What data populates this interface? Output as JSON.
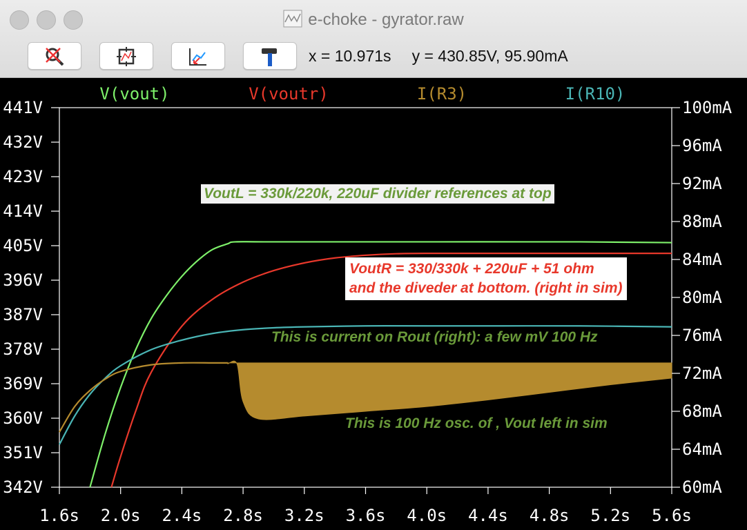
{
  "window": {
    "title": "e-choke - gyrator.raw",
    "cursor_x": "x = 10.971s",
    "cursor_y": "y = 430.85V, 95.90mA"
  },
  "toolbar": {
    "buttons": [
      {
        "icon": "zoom-cancel-icon"
      },
      {
        "icon": "autorange-icon"
      },
      {
        "icon": "pan-icon"
      },
      {
        "icon": "hammer-icon"
      }
    ]
  },
  "chart_data": {
    "type": "line",
    "title": "",
    "xlabel": "",
    "ylabel": "",
    "xlim": [
      1.6,
      5.6
    ],
    "ylim_left": [
      342,
      441
    ],
    "ylim_right": [
      60,
      100
    ],
    "x_ticks": [
      "1.6s",
      "2.0s",
      "2.4s",
      "2.8s",
      "3.2s",
      "3.6s",
      "4.0s",
      "4.4s",
      "4.8s",
      "5.2s",
      "5.6s"
    ],
    "y_left_ticks": [
      "441V",
      "432V",
      "423V",
      "414V",
      "405V",
      "396V",
      "387V",
      "378V",
      "369V",
      "360V",
      "351V",
      "342V"
    ],
    "y_right_ticks": [
      "100mA",
      "96mA",
      "92mA",
      "88mA",
      "84mA",
      "80mA",
      "76mA",
      "72mA",
      "68mA",
      "64mA",
      "60mA"
    ],
    "legend": [
      {
        "name": "V(vout)",
        "color": "#7ef06a"
      },
      {
        "name": "V(voutr)",
        "color": "#e8382b"
      },
      {
        "name": "I(R3)",
        "color": "#b58b2e"
      },
      {
        "name": "I(R10)",
        "color": "#4ab5b5"
      }
    ],
    "series": [
      {
        "name": "V(vout)",
        "axis": "left",
        "color": "#7ef06a",
        "x": [
          1.8,
          1.9,
          2.0,
          2.1,
          2.2,
          2.3,
          2.4,
          2.5,
          2.6,
          2.7,
          2.75,
          3.0,
          4.0,
          5.0,
          5.6
        ],
        "y": [
          342,
          356,
          368,
          378,
          386,
          392,
          397,
          401,
          404,
          405.5,
          406,
          406,
          406,
          406,
          405.8
        ]
      },
      {
        "name": "V(voutr)",
        "axis": "left",
        "color": "#e8382b",
        "x": [
          1.94,
          2.0,
          2.1,
          2.2,
          2.4,
          2.6,
          2.8,
          3.0,
          3.2,
          3.4,
          3.6,
          3.8,
          4.0,
          4.5,
          5.0,
          5.6
        ],
        "y": [
          342,
          350,
          362,
          372,
          384,
          391,
          395.5,
          398.5,
          400.5,
          401.8,
          402.5,
          402.9,
          403,
          403,
          403,
          403
        ]
      },
      {
        "name": "I(R10)",
        "axis": "right",
        "color": "#4ab5b5",
        "x": [
          1.6,
          1.7,
          1.8,
          1.9,
          2.0,
          2.2,
          2.4,
          2.6,
          2.8,
          3.0,
          3.2,
          3.6,
          4.0,
          4.5,
          5.0,
          5.6
        ],
        "y": [
          64.5,
          67.5,
          69.8,
          71.5,
          72.8,
          74.5,
          75.5,
          76.2,
          76.6,
          76.8,
          76.9,
          77,
          77,
          77,
          77,
          76.9
        ]
      },
      {
        "name": "I(R3)",
        "axis": "right",
        "color": "#b58b2e",
        "x": [
          1.6,
          1.7,
          1.8,
          1.9,
          2.0,
          2.2,
          2.4,
          2.6,
          2.7
        ],
        "y": [
          65.8,
          68.5,
          70.2,
          71.4,
          72.2,
          72.9,
          73.1,
          73.1,
          73.1
        ],
        "band": {
          "x": [
            2.7,
            2.76,
            2.8,
            2.9,
            3.2,
            3.6,
            4.0,
            4.4,
            4.8,
            5.2,
            5.6
          ],
          "low": [
            73,
            73,
            69,
            67.2,
            67.5,
            68,
            68.5,
            69.2,
            70,
            70.8,
            71.5
          ],
          "high": [
            73.1,
            73.1,
            73.1,
            73.1,
            73.1,
            73.1,
            73.1,
            73.1,
            73.1,
            73.1,
            73.1
          ]
        }
      }
    ],
    "annotations": [
      {
        "text": "VoutL = 330k/220k, 220uF divider references at top",
        "color": "#6a9a3a"
      },
      {
        "text": [
          "VoutR = 330/330k + 220uF + 51 ohm",
          "and the diveder at bottom. (right in sim)"
        ],
        "color": "#e8382b"
      },
      {
        "text": "This is current on Rout (right): a few mV 100 Hz",
        "color": "#6a9a3a"
      },
      {
        "text": "This is 100 Hz osc. of , Vout  left in sim",
        "color": "#6a9a3a"
      }
    ],
    "grid": false
  }
}
